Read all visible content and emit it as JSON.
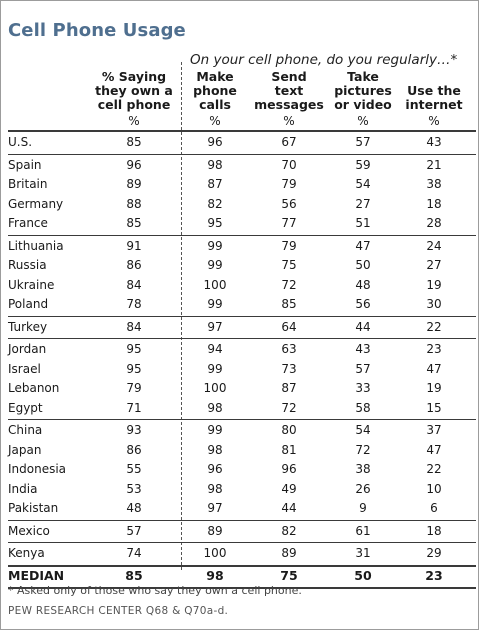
{
  "chart_data": {
    "type": "table",
    "title": "Cell Phone Usage",
    "subtitle": "On your cell phone, do you regularly…*",
    "columns": [
      {
        "header": [
          "% Saying",
          "they own a",
          "cell phone"
        ],
        "unit": "%"
      },
      {
        "header": [
          "Make",
          "phone",
          "calls"
        ],
        "unit": "%"
      },
      {
        "header": [
          "Send",
          "text",
          "messages"
        ],
        "unit": "%"
      },
      {
        "header": [
          "Take",
          "pictures",
          "or video"
        ],
        "unit": "%"
      },
      {
        "header": [
          "Use the",
          "internet"
        ],
        "unit": "%"
      }
    ],
    "groups": [
      [
        {
          "name": "U.S.",
          "values": [
            "85",
            "96",
            "67",
            "57",
            "43"
          ]
        }
      ],
      [
        {
          "name": "Spain",
          "values": [
            "96",
            "98",
            "70",
            "59",
            "21"
          ]
        },
        {
          "name": "Britain",
          "values": [
            "89",
            "87",
            "79",
            "54",
            "38"
          ]
        },
        {
          "name": "Germany",
          "values": [
            "88",
            "82",
            "56",
            "27",
            "18"
          ]
        },
        {
          "name": "France",
          "values": [
            "85",
            "95",
            "77",
            "51",
            "28"
          ]
        }
      ],
      [
        {
          "name": "Lithuania",
          "values": [
            "91",
            "99",
            "79",
            "47",
            "24"
          ]
        },
        {
          "name": "Russia",
          "values": [
            "86",
            "99",
            "75",
            "50",
            "27"
          ]
        },
        {
          "name": "Ukraine",
          "values": [
            "84",
            "100",
            "72",
            "48",
            "19"
          ]
        },
        {
          "name": "Poland",
          "values": [
            "78",
            "99",
            "85",
            "56",
            "30"
          ]
        }
      ],
      [
        {
          "name": "Turkey",
          "values": [
            "84",
            "97",
            "64",
            "44",
            "22"
          ]
        }
      ],
      [
        {
          "name": "Jordan",
          "values": [
            "95",
            "94",
            "63",
            "43",
            "23"
          ]
        },
        {
          "name": "Israel",
          "values": [
            "95",
            "99",
            "73",
            "57",
            "47"
          ]
        },
        {
          "name": "Lebanon",
          "values": [
            "79",
            "100",
            "87",
            "33",
            "19"
          ]
        },
        {
          "name": "Egypt",
          "values": [
            "71",
            "98",
            "72",
            "58",
            "15"
          ]
        }
      ],
      [
        {
          "name": "China",
          "values": [
            "93",
            "99",
            "80",
            "54",
            "37"
          ]
        },
        {
          "name": "Japan",
          "values": [
            "86",
            "98",
            "81",
            "72",
            "47"
          ]
        },
        {
          "name": "Indonesia",
          "values": [
            "55",
            "96",
            "96",
            "38",
            "22"
          ]
        },
        {
          "name": "India",
          "values": [
            "53",
            "98",
            "49",
            "26",
            "10"
          ]
        },
        {
          "name": "Pakistan",
          "values": [
            "48",
            "97",
            "44",
            "9",
            "6"
          ]
        }
      ],
      [
        {
          "name": "Mexico",
          "values": [
            "57",
            "89",
            "82",
            "61",
            "18"
          ]
        }
      ],
      [
        {
          "name": "Kenya",
          "values": [
            "74",
            "100",
            "89",
            "31",
            "29"
          ]
        }
      ]
    ],
    "median": {
      "name": "MEDIAN",
      "values": [
        "85",
        "98",
        "75",
        "50",
        "23"
      ]
    },
    "footnote": "* Asked only of those who say they own a cell phone.",
    "source": "PEW RESEARCH CENTER Q68 & Q70a-d.",
    "colors": {
      "title": "#4f6f8f",
      "rule": "#3a3a3a"
    }
  }
}
